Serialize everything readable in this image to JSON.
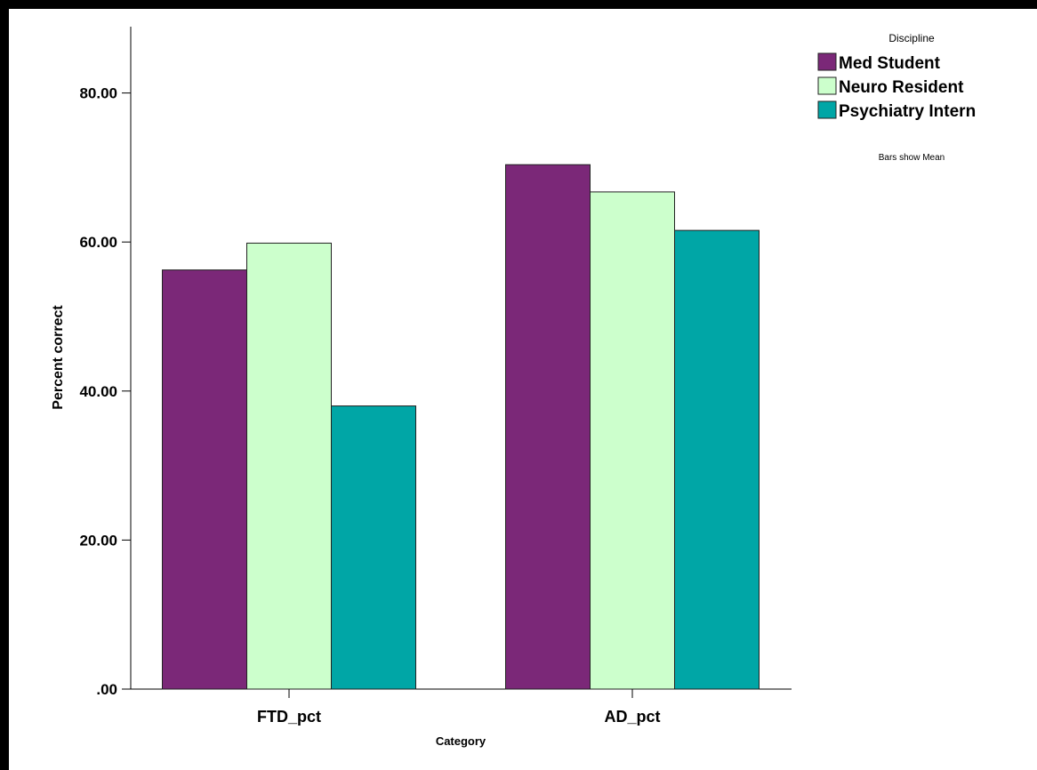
{
  "chart_data": {
    "type": "bar",
    "categories": [
      "FTD_pct",
      "AD_pct"
    ],
    "series": [
      {
        "name": "Med Student",
        "values": [
          56.25,
          70.38
        ],
        "color": "#7B2878"
      },
      {
        "name": "Neuro Resident",
        "values": [
          59.85,
          66.72
        ],
        "color": "#CCFFCC"
      },
      {
        "name": "Psychiatry Intern",
        "values": [
          38.0,
          61.56
        ],
        "color": "#00A6A6"
      }
    ],
    "xlabel": "Category",
    "ylabel": "Percent correct",
    "ylim": [
      0,
      88.9
    ],
    "yticks": [
      0,
      20,
      40,
      60,
      80
    ],
    "ytick_labels": [
      ".00",
      "20.00",
      "40.00",
      "60.00",
      "80.00"
    ],
    "legend_title": "Discipline",
    "legend_position": "top-right",
    "note": "Bars show Mean",
    "grid": false
  }
}
